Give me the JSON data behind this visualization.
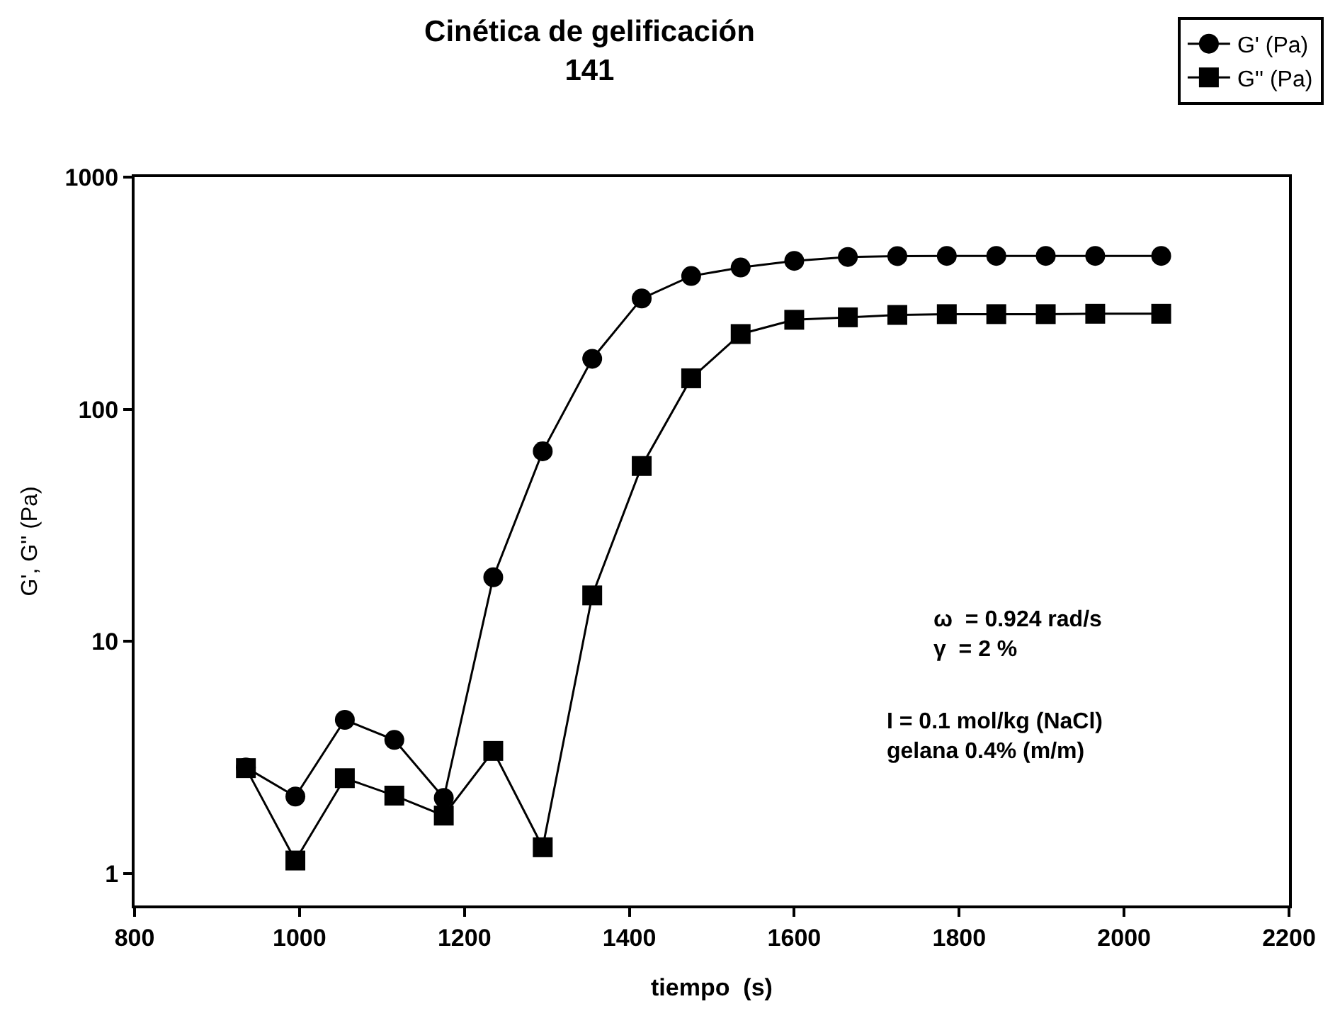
{
  "chart_data": {
    "type": "line",
    "title": "Cinética de gelificación\n141",
    "xlabel": "tiempo  (s)",
    "ylabel": "G', G'' (Pa)",
    "x": [
      935,
      995,
      1055,
      1115,
      1175,
      1235,
      1295,
      1355,
      1415,
      1475,
      1535,
      1600,
      1665,
      1725,
      1785,
      1845,
      1905,
      1965,
      2045
    ],
    "series": [
      {
        "name": "G' (Pa)",
        "color": "#000000",
        "marker": "circle",
        "values": [
          2.87,
          2.15,
          4.6,
          3.77,
          2.12,
          18.9,
          66,
          165,
          300,
          375,
          408,
          436,
          453,
          457,
          458,
          458,
          458,
          458,
          458
        ]
      },
      {
        "name": "G'' (Pa)",
        "color": "#000000",
        "marker": "square",
        "values": [
          2.85,
          1.14,
          2.58,
          2.17,
          1.78,
          3.38,
          1.3,
          15.8,
          57,
          136,
          211,
          243,
          249,
          255,
          257,
          257,
          257,
          258,
          258
        ]
      }
    ],
    "xlim": [
      800,
      2200
    ],
    "xticks": [
      800,
      1000,
      1200,
      1400,
      1600,
      1800,
      2000,
      2200
    ],
    "ylim": [
      0.73,
      1000
    ],
    "yticks": [
      1,
      10,
      100,
      1000
    ],
    "log": "y",
    "legend": "top right",
    "line_style": "solid",
    "annotations": [
      "ω  = 0.924 rad/s\nγ  = 2 %",
      "I = 0.1 mol/kg (NaCl)\ngelana 0.4% (m/m)"
    ]
  }
}
